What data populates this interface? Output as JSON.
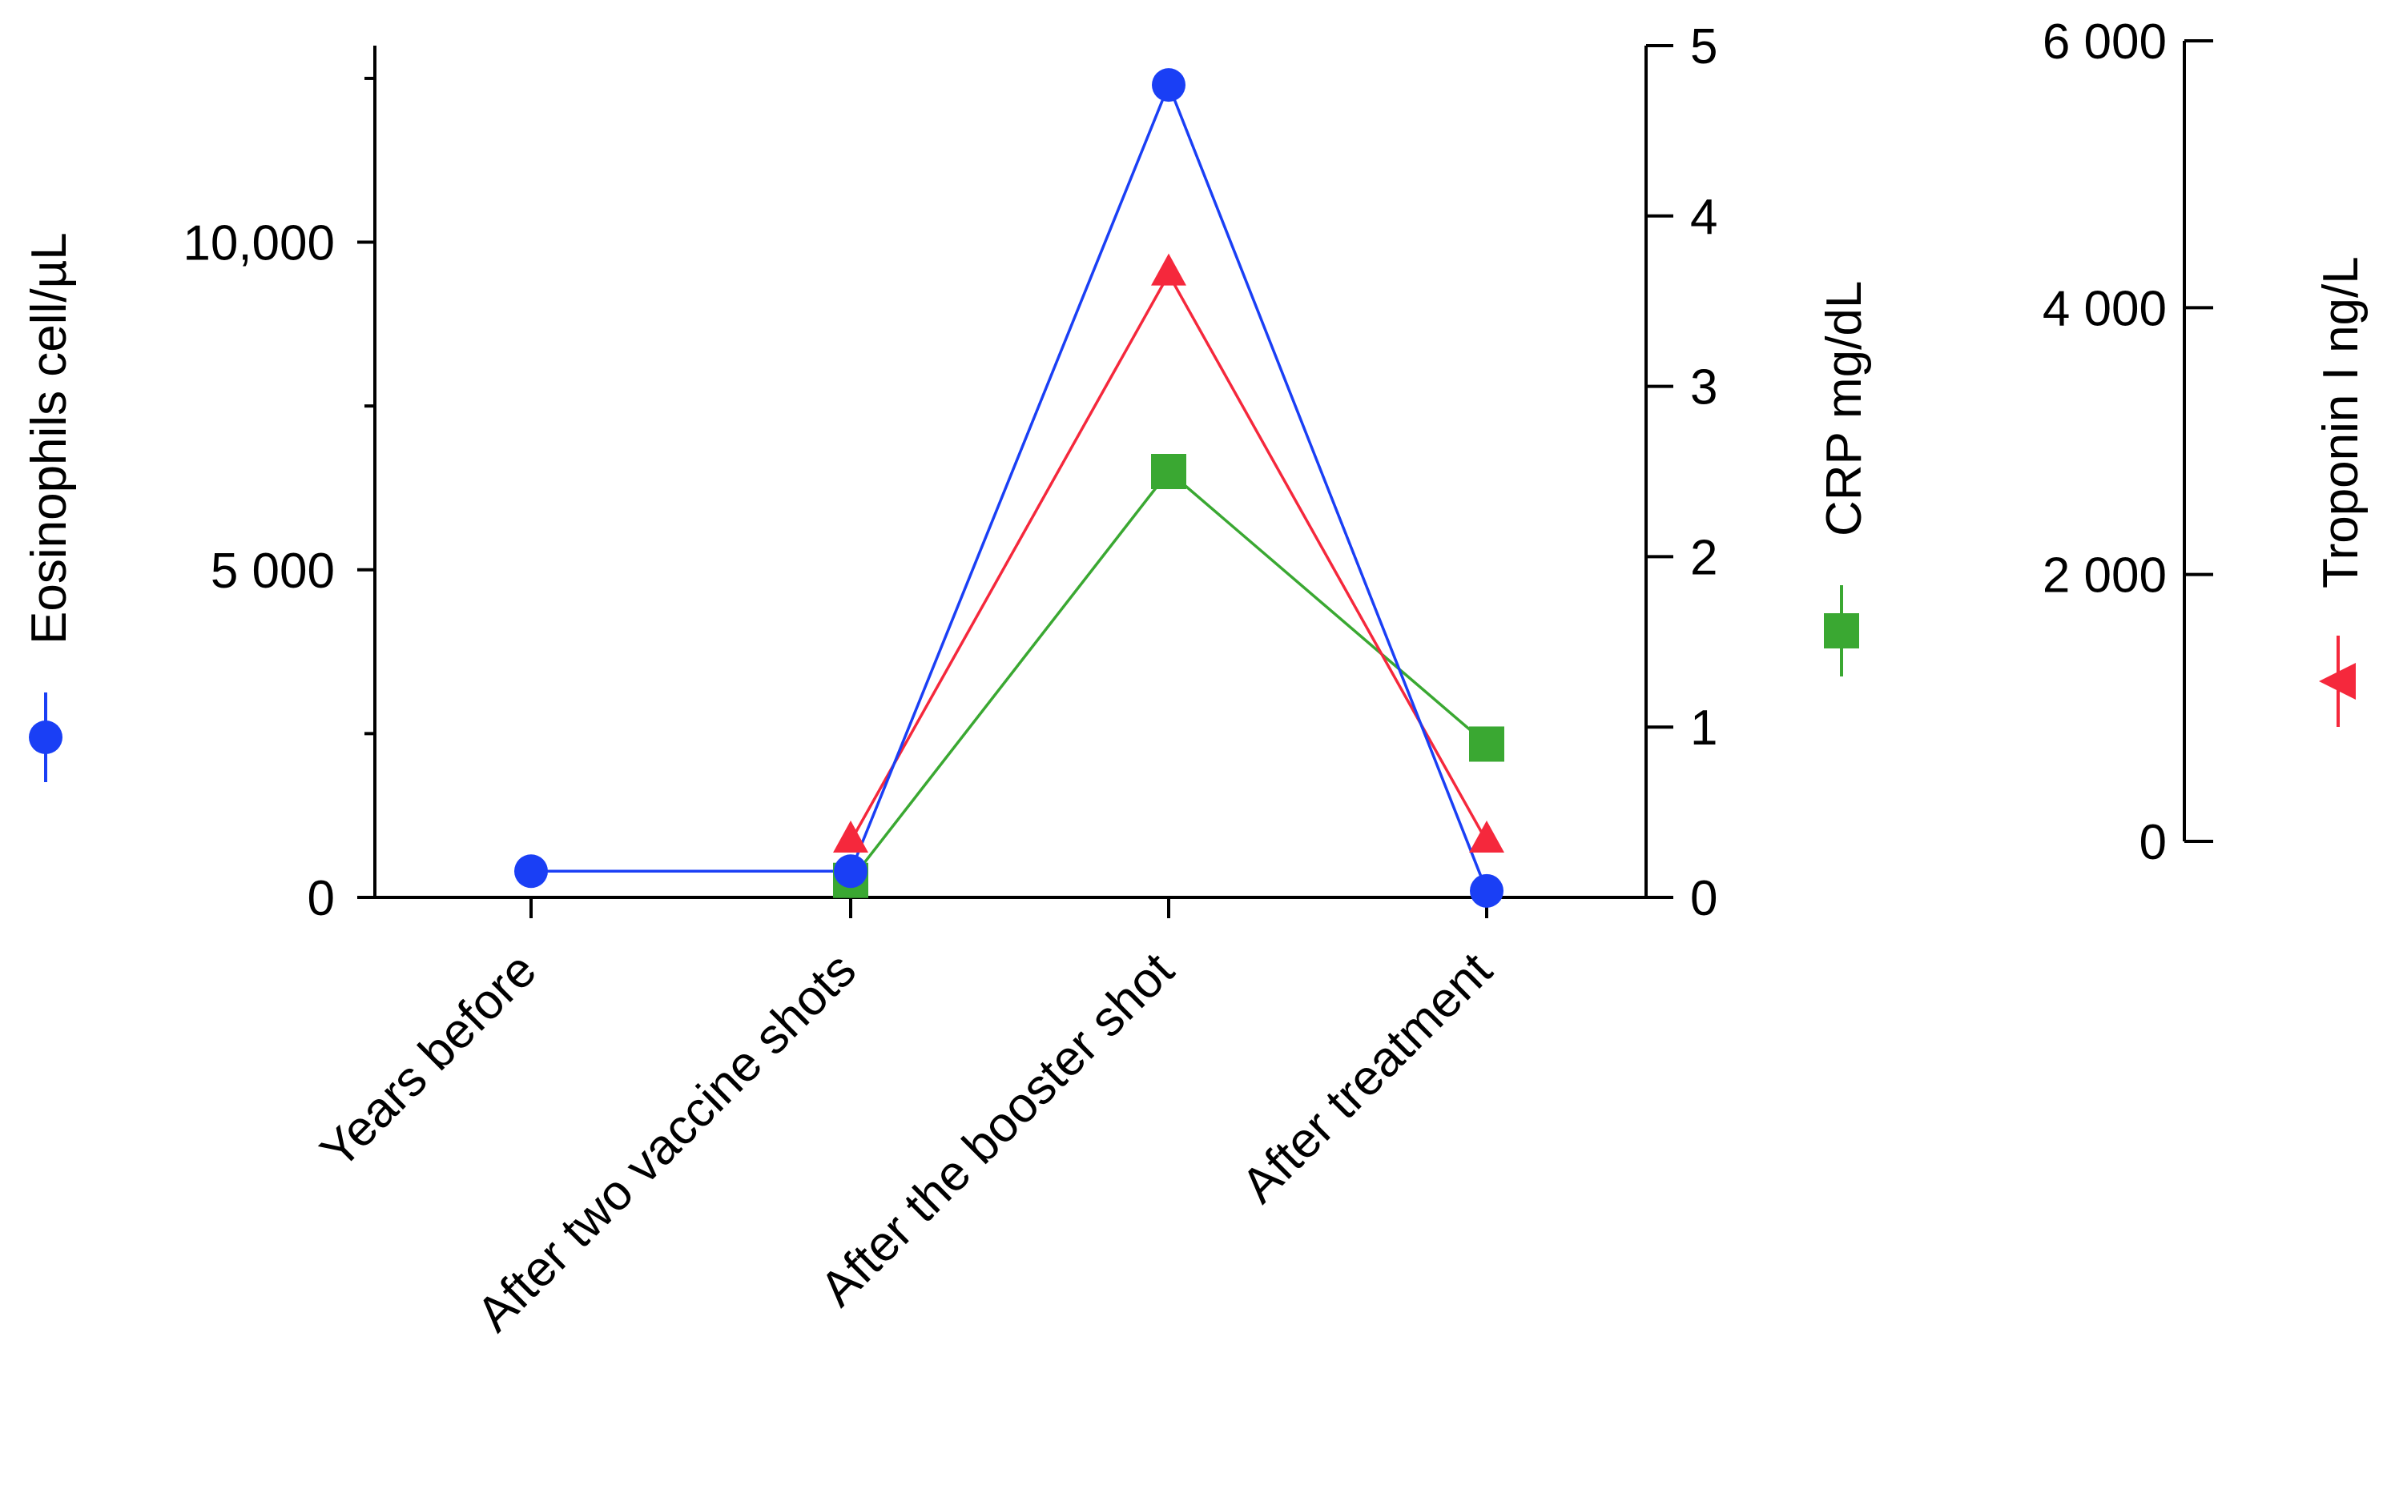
{
  "chart_data": {
    "type": "line",
    "categories": [
      "Years before",
      "After two vaccine shots",
      "After the booster shot",
      "After treatment"
    ],
    "series": [
      {
        "key": "eos",
        "name": "Eosinophils  cell/µL",
        "axis": "left",
        "color": "#1a3ff5",
        "marker": "circle",
        "values": [
          400,
          400,
          12400,
          100
        ]
      },
      {
        "key": "crp",
        "name": "CRP mg/dL",
        "axis": "right1",
        "color": "#3aa832",
        "marker": "square",
        "values": [
          null,
          0.1,
          2.5,
          0.9
        ]
      },
      {
        "key": "trop",
        "name": "Troponin I ng/L",
        "axis": "right2",
        "color": "#f5283c",
        "marker": "triangle",
        "values": [
          null,
          0,
          4250,
          0
        ]
      }
    ],
    "axes": {
      "left": {
        "label": "Eosinophils  cell/µL",
        "ylim": [
          0,
          13000
        ],
        "major_ticks": [
          0,
          5000,
          10000
        ],
        "minor_ticks": [
          2500,
          7500,
          12500
        ],
        "tick_labels": [
          "0",
          "5 000",
          "10,000"
        ]
      },
      "right1": {
        "label": "CRP mg/dL",
        "ylim": [
          0,
          5
        ],
        "major_ticks": [
          0,
          1,
          2,
          3,
          4,
          5
        ],
        "tick_labels": [
          "0",
          "1",
          "2",
          "3",
          "4",
          "5"
        ]
      },
      "right2": {
        "label": "Troponin I ng/L",
        "ylim": [
          0,
          6000
        ],
        "major_ticks": [
          0,
          2000,
          4000,
          6000
        ],
        "tick_labels": [
          "0",
          "2 000",
          "4 000",
          "6 000"
        ]
      }
    },
    "grid": false
  }
}
